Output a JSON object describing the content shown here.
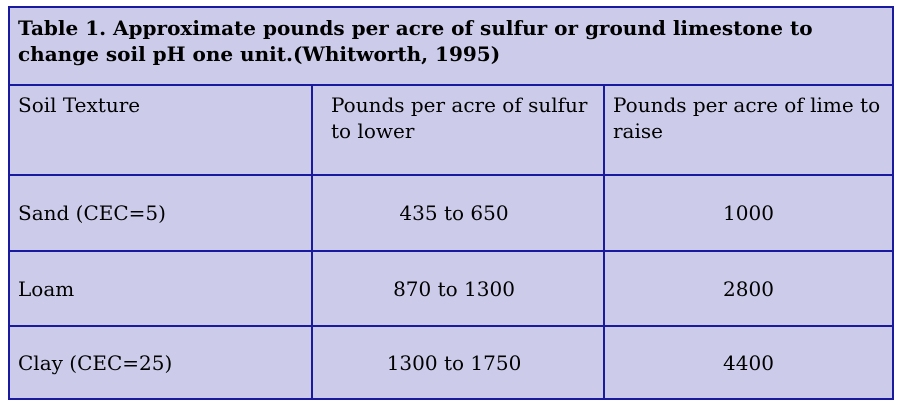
{
  "table": {
    "caption": "Table 1.  Approximate pounds per acre of sulfur or ground limestone to change soil pH one unit.(Whitworth, 1995)",
    "headers": [
      "Soil Texture",
      "Pounds per acre of sulfur to lower",
      "Pounds per acre of lime to raise"
    ],
    "rows": [
      [
        "Sand (CEC=5)",
        "435 to 650",
        "1000"
      ],
      [
        "Loam",
        "870 to 1300",
        "2800"
      ],
      [
        "Clay (CEC=25)",
        "1300 to 1750",
        "4400"
      ]
    ]
  },
  "colors": {
    "cell_background": "#ccccea",
    "border": "#1a1aa0"
  }
}
